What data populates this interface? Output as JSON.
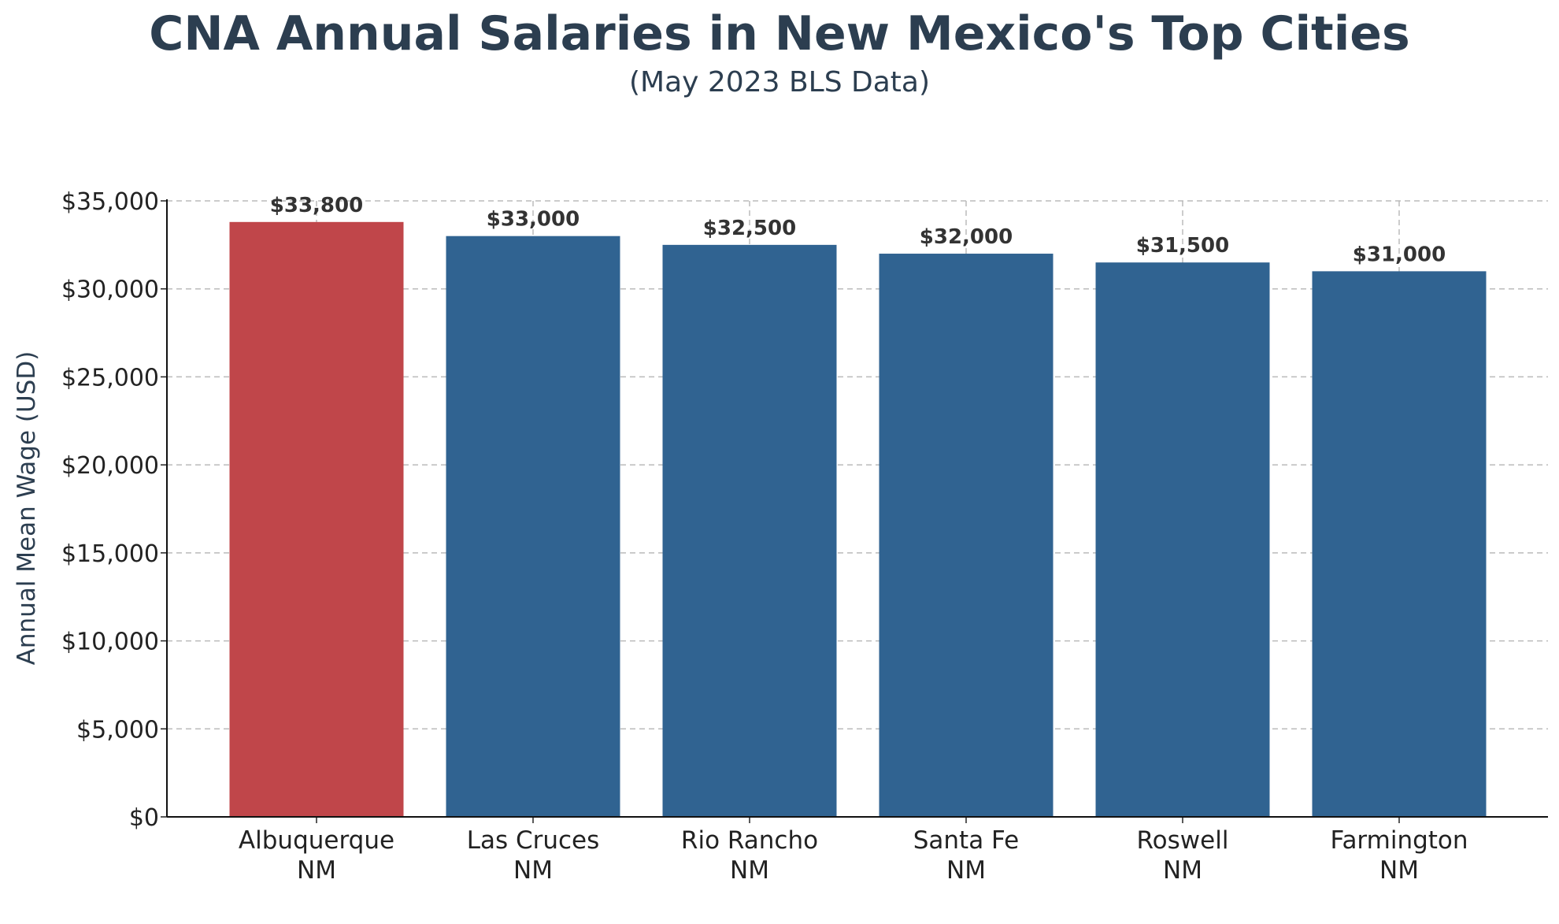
{
  "chart_data": {
    "type": "bar",
    "title": "CNA Annual Salaries in New Mexico's Top Cities",
    "subtitle": "(May 2023 BLS Data)",
    "xlabel": "",
    "ylabel": "Annual Mean Wage (USD)",
    "categories": [
      [
        "Albuquerque",
        "NM"
      ],
      [
        "Las Cruces",
        "NM"
      ],
      [
        "Rio Rancho",
        "NM"
      ],
      [
        "Santa Fe",
        "NM"
      ],
      [
        "Roswell",
        "NM"
      ],
      [
        "Farmington",
        "NM"
      ]
    ],
    "values": [
      33800,
      33000,
      32500,
      32000,
      31500,
      31000
    ],
    "data_labels": [
      "$33,800",
      "$33,000",
      "$32,500",
      "$32,000",
      "$31,500",
      "$31,000"
    ],
    "bar_colors": [
      "#c0464a",
      "#306391",
      "#306391",
      "#306391",
      "#306391",
      "#306391"
    ],
    "ylim": [
      0,
      35000
    ],
    "yticks": [
      0,
      5000,
      10000,
      15000,
      20000,
      25000,
      30000,
      35000
    ],
    "ytick_labels": [
      "$0",
      "$5,000",
      "$10,000",
      "$15,000",
      "$20,000",
      "$25,000",
      "$30,000",
      "$35,000"
    ],
    "grid": true,
    "grid_style": "dashed",
    "legend": "none"
  }
}
